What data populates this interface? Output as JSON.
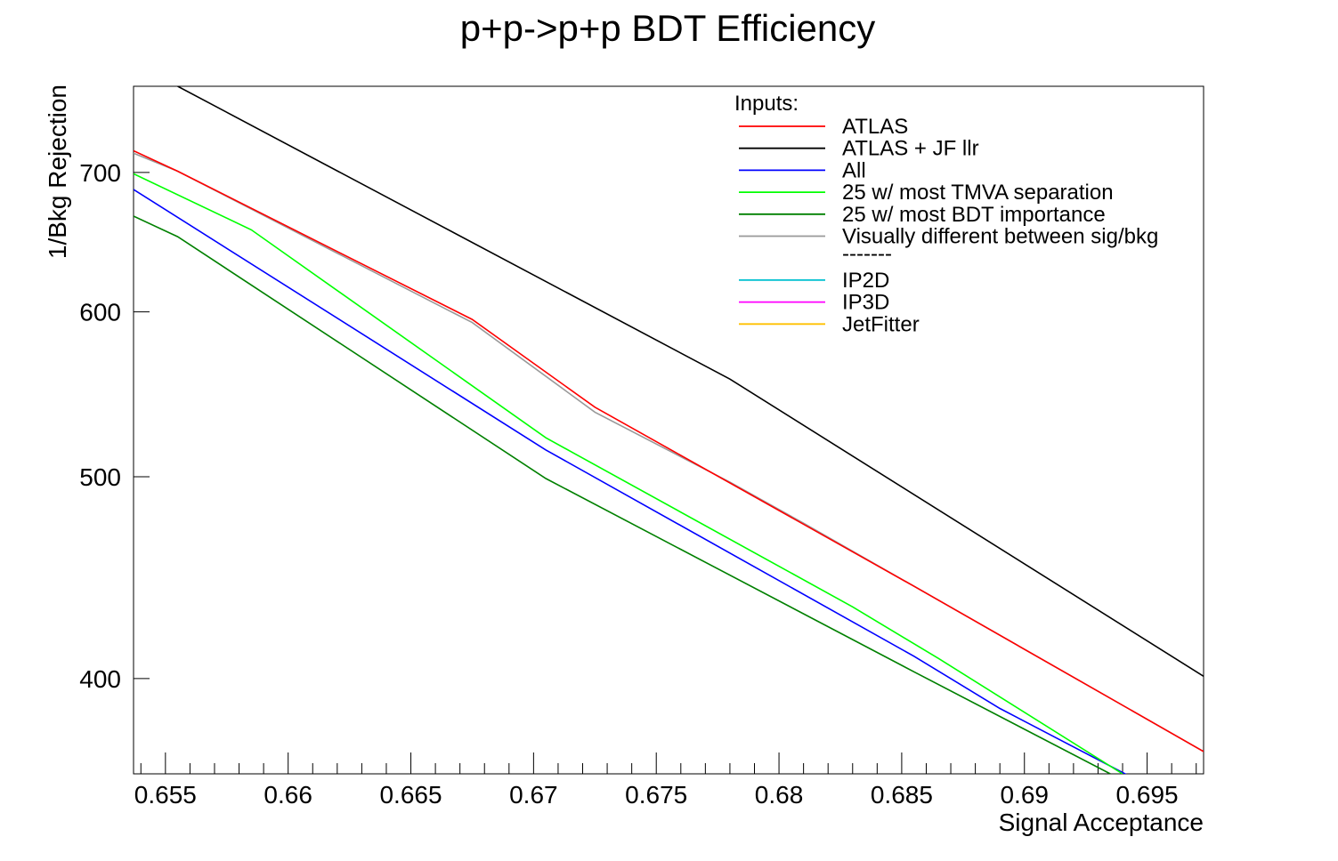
{
  "chart_data": {
    "type": "line",
    "title": "p+p->p+p BDT Efficiency",
    "xlabel": "Signal Acceptance",
    "ylabel": "1/Bkg Rejection",
    "xlim": [
      0.6537,
      0.6973
    ],
    "ylim": [
      360,
      770
    ],
    "y_scale": "log",
    "x_major_ticks": [
      0.655,
      0.66,
      0.665,
      0.67,
      0.675,
      0.68,
      0.685,
      0.69,
      0.695
    ],
    "x_tick_labels": [
      "0.655",
      "0.66",
      "0.665",
      "0.67",
      "0.675",
      "0.68",
      "0.685",
      "0.69",
      "0.695"
    ],
    "y_major_ticks": [
      400,
      500,
      600,
      700
    ],
    "y_tick_labels": [
      "400",
      "500",
      "600",
      "700"
    ],
    "legend": {
      "header": "Inputs:",
      "placement": "top-right",
      "separator": "-------",
      "entries": [
        {
          "label": "ATLAS",
          "color": "#ff0000"
        },
        {
          "label": "ATLAS + JF llr",
          "color": "#000000"
        },
        {
          "label": "All",
          "color": "#0000ff"
        },
        {
          "label": "25 w/ most TMVA separation",
          "color": "#00ff00"
        },
        {
          "label": "25 w/ most BDT importance",
          "color": "#008000"
        },
        {
          "label": "Visually different between sig/bkg",
          "color": "#999999"
        },
        {
          "label": "IP2D",
          "color": "#00c0d0"
        },
        {
          "label": "IP3D",
          "color": "#ff00ff"
        },
        {
          "label": "JetFitter",
          "color": "#ffc000"
        }
      ]
    },
    "series": [
      {
        "name": "25 w/ most BDT importance",
        "color": "#008000",
        "x": [
          0.6537,
          0.6555,
          0.6705,
          0.6855,
          0.6935
        ],
        "y": [
          667,
          652,
          499,
          403,
          360
        ]
      },
      {
        "name": "All",
        "color": "#0000ff",
        "x": [
          0.6537,
          0.6705,
          0.6855,
          0.689,
          0.6945
        ],
        "y": [
          687,
          515,
          410,
          387,
          358
        ]
      },
      {
        "name": "25 w/ most TMVA separation",
        "color": "#00ff00",
        "x": [
          0.6537,
          0.6585,
          0.6705,
          0.683,
          0.6865,
          0.694
        ],
        "y": [
          699,
          657,
          522,
          433,
          409,
          360
        ]
      },
      {
        "name": "Visually different between sig/bkg",
        "color": "#999999",
        "x": [
          0.6537,
          0.6555,
          0.6675,
          0.6725,
          0.678,
          0.681,
          0.6973
        ],
        "y": [
          715,
          701,
          593,
          537,
          497,
          475,
          369
        ]
      },
      {
        "name": "ATLAS",
        "color": "#ff0000",
        "x": [
          0.6537,
          0.6555,
          0.6675,
          0.6725,
          0.6855,
          0.6973
        ],
        "y": [
          717,
          701,
          595,
          540,
          443,
          369
        ]
      },
      {
        "name": "ATLAS + JF llr",
        "color": "#000000",
        "x": [
          0.6555,
          0.678,
          0.6973
        ],
        "y": [
          770,
          557,
          401
        ]
      }
    ]
  }
}
